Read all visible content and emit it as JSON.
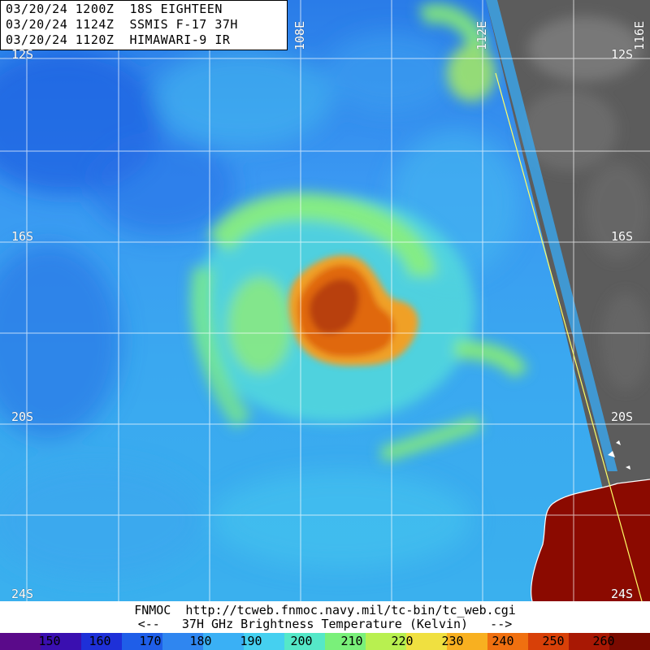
{
  "header": {
    "line1": "03/20/24 1200Z  18S EIGHTEEN",
    "line2": "03/20/24 1124Z  SSMIS F-17 37H",
    "line3": "03/20/24 1120Z  HIMAWARI-9 IR"
  },
  "grid": {
    "lat_labels": [
      "12S",
      "16S",
      "20S",
      "24S"
    ],
    "lon_labels": [
      "108E",
      "112E",
      "116E"
    ]
  },
  "footer": {
    "source": "FNMOC  http://tcweb.fnmoc.navy.mil/tc-bin/tc_web.cgi",
    "legend_title": "<--   37H GHz Brightness Temperature (Kelvin)   -->"
  },
  "colorbar": {
    "ticks": [
      "150",
      "160",
      "170",
      "180",
      "190",
      "200",
      "210",
      "220",
      "230",
      "240",
      "250",
      "260"
    ],
    "colors": [
      "#5a0a8a",
      "#3a0fb0",
      "#1e30d8",
      "#1f5ee8",
      "#2f86f0",
      "#3ab0f5",
      "#45d0f0",
      "#55e8c8",
      "#7af07a",
      "#b8f050",
      "#f0e040",
      "#f8b020",
      "#f07010",
      "#d84008",
      "#a81804",
      "#7a0a00"
    ]
  },
  "colors": {
    "ocean_background": "#3aa0f0",
    "eye_warm_core": "#c84a08",
    "ir_cloud": "#5a5a5a",
    "land_hot": "#8b0a00",
    "grid_line": "#ffffff",
    "track_line": "#ffff66"
  }
}
